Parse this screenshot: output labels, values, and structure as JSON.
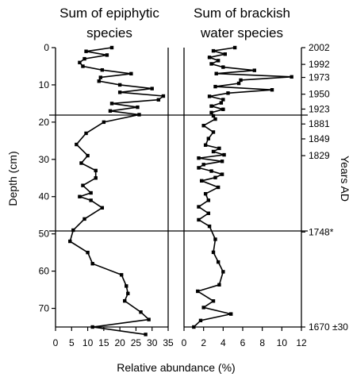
{
  "chart_data": [
    {
      "type": "line",
      "orientation": "vertical-profile",
      "title_lines": [
        "Sum of epiphytic",
        "species"
      ],
      "xlim": [
        0,
        35
      ],
      "x_ticks": [
        0,
        5,
        10,
        15,
        20,
        25,
        30,
        35
      ],
      "ylim": [
        0,
        75
      ],
      "y_ticks": [
        0,
        10,
        20,
        30,
        40,
        50,
        60,
        70
      ],
      "ylabel": "Depth (cm)",
      "points": [
        {
          "depth": 0,
          "value": 17.5
        },
        {
          "depth": 1,
          "value": 9.5
        },
        {
          "depth": 2,
          "value": 16
        },
        {
          "depth": 3,
          "value": 9
        },
        {
          "depth": 4,
          "value": 7.5
        },
        {
          "depth": 5,
          "value": 8.5
        },
        {
          "depth": 6,
          "value": 14.5
        },
        {
          "depth": 7,
          "value": 23.5
        },
        {
          "depth": 8,
          "value": 14
        },
        {
          "depth": 9,
          "value": 13.5
        },
        {
          "depth": 10,
          "value": 20
        },
        {
          "depth": 11,
          "value": 30
        },
        {
          "depth": 12,
          "value": 20
        },
        {
          "depth": 13,
          "value": 33.5
        },
        {
          "depth": 14,
          "value": 32
        },
        {
          "depth": 15,
          "value": 17.5
        },
        {
          "depth": 16,
          "value": 25.5
        },
        {
          "depth": 17,
          "value": 17
        },
        {
          "depth": 18,
          "value": 26
        },
        {
          "depth": 20,
          "value": 15
        },
        {
          "depth": 23,
          "value": 9.5
        },
        {
          "depth": 26,
          "value": 6.5
        },
        {
          "depth": 29,
          "value": 10
        },
        {
          "depth": 31,
          "value": 8
        },
        {
          "depth": 33,
          "value": 12.5
        },
        {
          "depth": 35,
          "value": 12.5
        },
        {
          "depth": 37,
          "value": 8.5
        },
        {
          "depth": 39,
          "value": 11
        },
        {
          "depth": 40,
          "value": 7.5
        },
        {
          "depth": 41,
          "value": 11
        },
        {
          "depth": 43,
          "value": 14.5
        },
        {
          "depth": 46,
          "value": 9
        },
        {
          "depth": 49,
          "value": 5.5
        },
        {
          "depth": 52,
          "value": 4.5
        },
        {
          "depth": 55,
          "value": 10
        },
        {
          "depth": 58,
          "value": 11.5
        },
        {
          "depth": 61,
          "value": 20.5
        },
        {
          "depth": 64,
          "value": 22
        },
        {
          "depth": 66,
          "value": 22.5
        },
        {
          "depth": 68,
          "value": 21.5
        },
        {
          "depth": 71,
          "value": 26.5
        },
        {
          "depth": 73,
          "value": 29
        },
        {
          "depth": 75,
          "value": 11.5
        },
        {
          "depth": 77,
          "value": 28
        }
      ]
    },
    {
      "type": "line",
      "orientation": "vertical-profile",
      "title_lines": [
        "Sum of brackish",
        "water species"
      ],
      "xlim": [
        0,
        12
      ],
      "x_ticks": [
        0,
        2,
        4,
        6,
        8,
        10,
        12
      ],
      "ylim": [
        0,
        75
      ],
      "xlabel": "Relative abundance (%)",
      "year_axis_label": "Years AD",
      "year_labels": [
        {
          "label": "2002",
          "depth": 0
        },
        {
          "label": "1992",
          "depth": 4.5
        },
        {
          "label": "1973",
          "depth": 8
        },
        {
          "label": "1950",
          "depth": 12.5
        },
        {
          "label": "1923",
          "depth": 16.5
        },
        {
          "label": "1881",
          "depth": 20.5
        },
        {
          "label": "1849",
          "depth": 24.5
        },
        {
          "label": "1829",
          "depth": 29
        },
        {
          "label": "1748*",
          "depth": 49.5
        },
        {
          "label": "1670 ±30",
          "depth": 75
        }
      ]
    }
  ]
}
